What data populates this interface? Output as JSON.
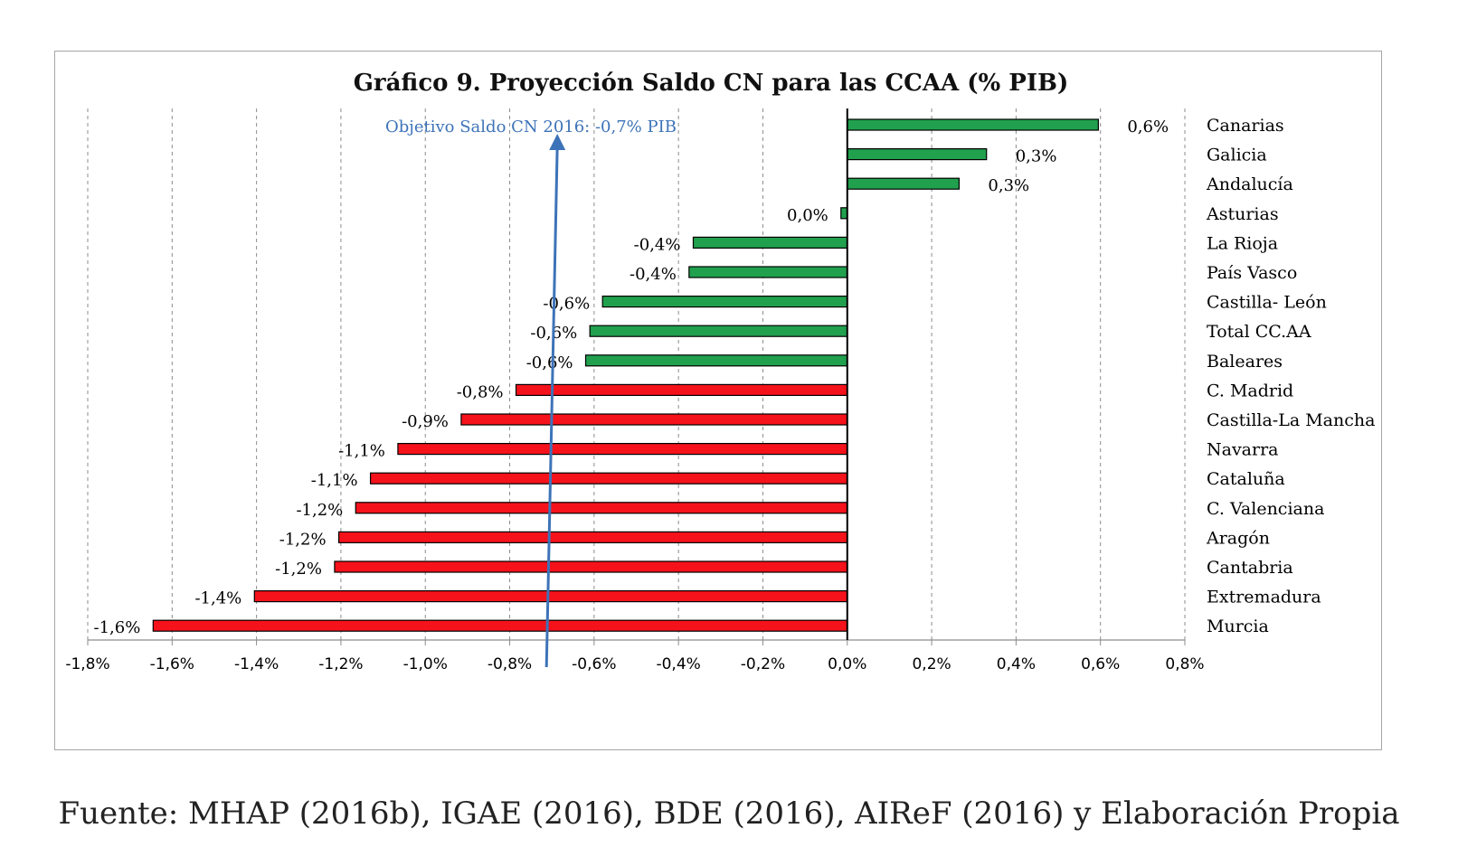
{
  "chart_data": {
    "type": "bar",
    "orientation": "horizontal",
    "title": "Gráfico 9. Proyección Saldo CN para las CCAA (% PIB)",
    "categories": [
      "Canarias",
      "Galicia",
      "Andalucía",
      "Asturias",
      "La Rioja",
      "País Vasco",
      "Castilla- León",
      "Total CC.AA",
      "Baleares",
      "C. Madrid",
      "Castilla-La Mancha",
      "Navarra",
      "Cataluña",
      "C. Valenciana",
      "Aragón",
      "Cantabria",
      "Extremadura",
      "Murcia"
    ],
    "values": [
      0.595,
      0.33,
      0.265,
      -0.015,
      -0.365,
      -0.375,
      -0.58,
      -0.61,
      -0.62,
      -0.785,
      -0.915,
      -1.065,
      -1.13,
      -1.165,
      -1.205,
      -1.215,
      -1.405,
      -1.645
    ],
    "value_labels": [
      "0,6%",
      "0,3%",
      "0,3%",
      "0,0%",
      "-0,4%",
      "-0,4%",
      "-0,6%",
      "-0,6%",
      "-0,6%",
      "-0,8%",
      "-0,9%",
      "-1,1%",
      "-1,1%",
      "-1,2%",
      "-1,2%",
      "-1,2%",
      "-1,4%",
      "-1,6%"
    ],
    "bar_colors": [
      "#21a04e",
      "#21a04e",
      "#21a04e",
      "#21a04e",
      "#21a04e",
      "#21a04e",
      "#21a04e",
      "#21a04e",
      "#21a04e",
      "#f5121b",
      "#f5121b",
      "#f5121b",
      "#f5121b",
      "#f5121b",
      "#f5121b",
      "#f5121b",
      "#f5121b",
      "#f5121b"
    ],
    "xlim": [
      -1.8,
      0.8
    ],
    "x_ticks": [
      -1.8,
      -1.6,
      -1.4,
      -1.2,
      -1.0,
      -0.8,
      -0.6,
      -0.4,
      -0.2,
      0.0,
      0.2,
      0.4,
      0.6,
      0.8
    ],
    "x_tick_labels": [
      "-1,8%",
      "-1,6%",
      "-1,4%",
      "-1,2%",
      "-1,0%",
      "-0,8%",
      "-0,6%",
      "-0,4%",
      "-0,2%",
      "0,0%",
      "0,2%",
      "0,4%",
      "0,6%",
      "0,8%"
    ],
    "grid": "vertical dashed",
    "annotation": {
      "text": "Objetivo Saldo CN 2016:  -0,7% PIB",
      "x_value": -0.7,
      "color": "#3d73b8"
    }
  },
  "source": "Fuente: MHAP (2016b), IGAE (2016), BDE (2016), AIReF (2016) y Elaboración Propia"
}
